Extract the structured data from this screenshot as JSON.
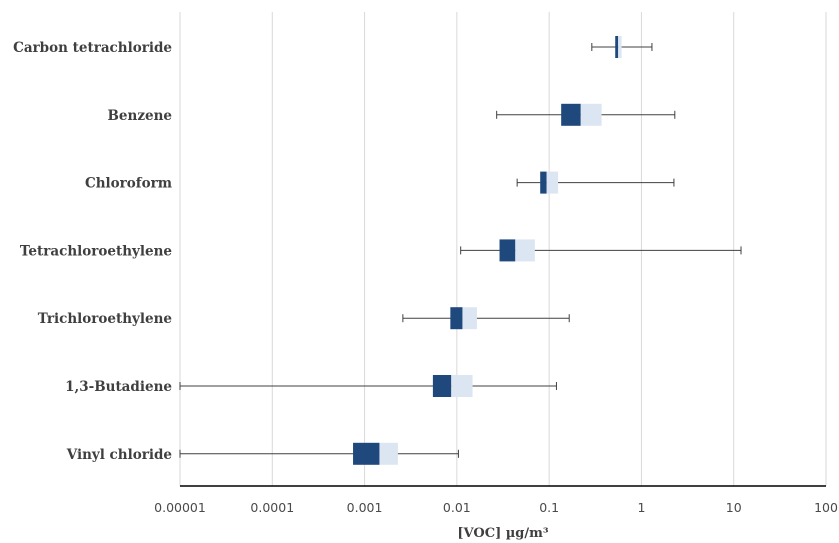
{
  "chart_data": {
    "type": "box",
    "orientation": "horizontal",
    "xscale": "log",
    "xlim": [
      1e-05,
      100
    ],
    "x_ticks": [
      "0.00001",
      "0.0001",
      "0.001",
      "0.01",
      "0.1",
      "1",
      "10",
      "100"
    ],
    "xlabel": "[VOC] µg/m³",
    "grid": "vertical",
    "colors": {
      "lower_box": "#1f497d",
      "upper_box": "#dce6f2",
      "whisker": "#404040",
      "grid": "#d9d9d9",
      "axis": "#000000"
    },
    "categories": [
      "Carbon tetrachloride",
      "Benzene",
      "Chloroform",
      "Tetrachloroethylene",
      "Trichloroethylene",
      "1,3-Butadiene",
      "Vinyl chloride"
    ],
    "boxes": [
      {
        "name": "Carbon tetrachloride",
        "min": 0.29,
        "q1": 0.52,
        "median": 0.56,
        "q3": 0.61,
        "max": 1.3
      },
      {
        "name": "Benzene",
        "min": 0.027,
        "q1": 0.135,
        "median": 0.22,
        "q3": 0.37,
        "max": 2.3
      },
      {
        "name": "Chloroform",
        "min": 0.045,
        "q1": 0.08,
        "median": 0.094,
        "q3": 0.125,
        "max": 2.25
      },
      {
        "name": "Tetrachloroethylene",
        "min": 0.011,
        "q1": 0.029,
        "median": 0.043,
        "q3": 0.07,
        "max": 12
      },
      {
        "name": "Trichloroethylene",
        "min": 0.0026,
        "q1": 0.0085,
        "median": 0.0115,
        "q3": 0.0165,
        "max": 0.165
      },
      {
        "name": "1,3-Butadiene",
        "min": 1e-05,
        "q1": 0.0055,
        "median": 0.0087,
        "q3": 0.0148,
        "max": 0.12
      },
      {
        "name": "Vinyl chloride",
        "min": 1e-05,
        "q1": 0.00075,
        "median": 0.00145,
        "q3": 0.0023,
        "max": 0.0104
      }
    ]
  }
}
